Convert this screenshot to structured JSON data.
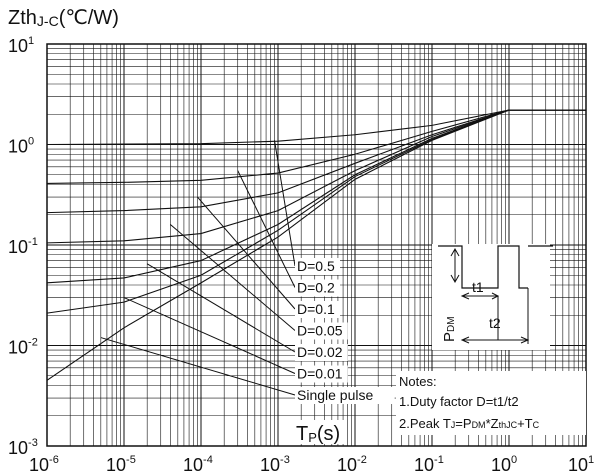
{
  "chart_data": {
    "type": "line",
    "title": "",
    "ylabel_main": "Zth",
    "ylabel_sub": "J-C",
    "ylabel_unit": "(℃/W)",
    "xlabel_main": "T",
    "xlabel_sub": "P",
    "xlabel_unit": "(s)",
    "x_scale": "log",
    "y_scale": "log",
    "xlim": [
      1e-06,
      10
    ],
    "ylim": [
      0.001,
      10
    ],
    "grid": true,
    "x_ticks": [
      {
        "base": "10",
        "exp": "-6"
      },
      {
        "base": "10",
        "exp": "-5"
      },
      {
        "base": "10",
        "exp": "-4"
      },
      {
        "base": "10",
        "exp": "-3"
      },
      {
        "base": "10",
        "exp": "-2"
      },
      {
        "base": "10",
        "exp": "-1"
      },
      {
        "base": "10",
        "exp": "0"
      },
      {
        "base": "10",
        "exp": "1"
      }
    ],
    "y_ticks": [
      {
        "base": "10",
        "exp": "-3"
      },
      {
        "base": "10",
        "exp": "-2"
      },
      {
        "base": "10",
        "exp": "-1"
      },
      {
        "base": "10",
        "exp": "0"
      },
      {
        "base": "10",
        "exp": "1"
      }
    ],
    "series": [
      {
        "name": "D=0.5",
        "points": [
          [
            1e-06,
            1.0
          ],
          [
            0.0001,
            1.02
          ],
          [
            0.001,
            1.08
          ],
          [
            0.01,
            1.25
          ],
          [
            0.1,
            1.55
          ],
          [
            1.0,
            2.2
          ],
          [
            10,
            2.2
          ]
        ]
      },
      {
        "name": "D=0.2",
        "points": [
          [
            1e-06,
            0.41
          ],
          [
            1e-05,
            0.42
          ],
          [
            0.0001,
            0.44
          ],
          [
            0.001,
            0.52
          ],
          [
            0.01,
            0.8
          ],
          [
            0.1,
            1.35
          ],
          [
            1.0,
            2.2
          ],
          [
            10,
            2.2
          ]
        ]
      },
      {
        "name": "D=0.1",
        "points": [
          [
            1e-06,
            0.21
          ],
          [
            1e-05,
            0.22
          ],
          [
            0.0001,
            0.24
          ],
          [
            0.001,
            0.33
          ],
          [
            0.01,
            0.65
          ],
          [
            0.1,
            1.25
          ],
          [
            1.0,
            2.2
          ],
          [
            10,
            2.2
          ]
        ]
      },
      {
        "name": "D=0.05",
        "points": [
          [
            1e-06,
            0.105
          ],
          [
            1e-05,
            0.11
          ],
          [
            0.0001,
            0.13
          ],
          [
            0.001,
            0.22
          ],
          [
            0.01,
            0.55
          ],
          [
            0.1,
            1.2
          ],
          [
            1.0,
            2.2
          ],
          [
            10,
            2.2
          ]
        ]
      },
      {
        "name": "D=0.02",
        "points": [
          [
            1e-06,
            0.042
          ],
          [
            1e-05,
            0.047
          ],
          [
            0.0001,
            0.07
          ],
          [
            0.001,
            0.16
          ],
          [
            0.01,
            0.5
          ],
          [
            0.1,
            1.15
          ],
          [
            1.0,
            2.2
          ],
          [
            10,
            2.2
          ]
        ]
      },
      {
        "name": "D=0.01",
        "points": [
          [
            1e-06,
            0.021
          ],
          [
            1e-05,
            0.027
          ],
          [
            0.0001,
            0.05
          ],
          [
            0.001,
            0.14
          ],
          [
            0.01,
            0.48
          ],
          [
            0.1,
            1.12
          ],
          [
            1.0,
            2.2
          ],
          [
            10,
            2.2
          ]
        ]
      },
      {
        "name": "Single pulse",
        "points": [
          [
            1e-06,
            0.0045
          ],
          [
            1e-05,
            0.015
          ],
          [
            0.0001,
            0.042
          ],
          [
            0.001,
            0.12
          ],
          [
            0.01,
            0.45
          ],
          [
            0.1,
            1.1
          ],
          [
            1.0,
            2.2
          ],
          [
            10,
            2.2
          ]
        ]
      }
    ],
    "legend_leaders": [
      {
        "label": "D=0.5",
        "from": [
          0.0009,
          1.1
        ]
      },
      {
        "label": "D=0.2",
        "from": [
          0.0003,
          0.55
        ]
      },
      {
        "label": "D=0.1",
        "from": [
          9e-05,
          0.3
        ]
      },
      {
        "label": "D=0.05",
        "from": [
          4e-05,
          0.16
        ]
      },
      {
        "label": "D=0.02",
        "from": [
          2e-05,
          0.065
        ]
      },
      {
        "label": "D=0.01",
        "from": [
          1e-05,
          0.03
        ]
      },
      {
        "label": "Single pulse",
        "from": [
          5e-06,
          0.012
        ]
      }
    ],
    "inset": {
      "pdm_main": "P",
      "pdm_sub": "DM",
      "t1_label": "t1",
      "t2_label": "t2"
    },
    "notes": {
      "title": "Notes:",
      "line1": "1.Duty factor D=t1/t2",
      "line2_a": "2.Peak T",
      "line2_b": "J",
      "line2_c": "=P",
      "line2_d": "DM",
      "line2_e": "*Z",
      "line2_f": "thJC",
      "line2_g": "+T",
      "line2_h": "C"
    }
  }
}
